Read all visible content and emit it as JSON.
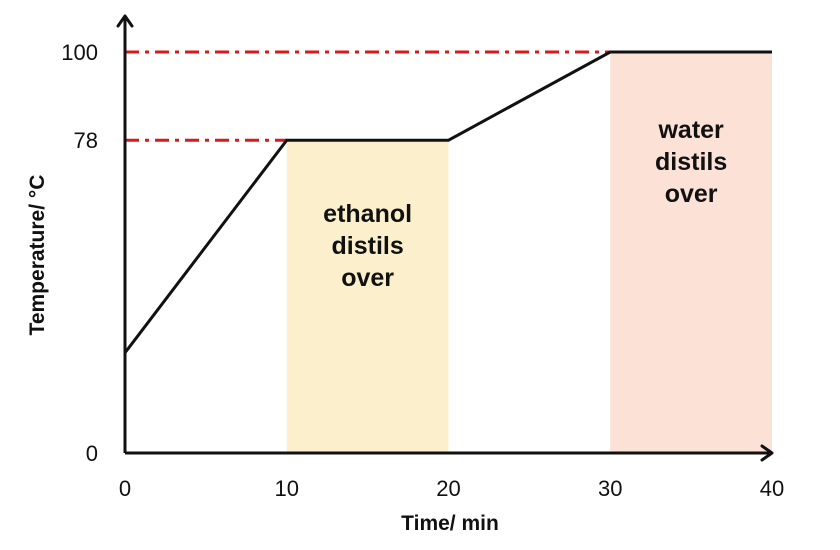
{
  "chart_data": {
    "type": "line",
    "title": "",
    "xlabel": "Time/ min",
    "ylabel": "Temperature/ °C",
    "xlim": [
      0,
      40
    ],
    "ylim": [
      0,
      100
    ],
    "x_ticks": [
      "0",
      "10",
      "20",
      "30",
      "40"
    ],
    "y_ticks": [
      "0",
      "78",
      "100"
    ],
    "grid": false,
    "series": [
      {
        "x": [
          0,
          10,
          20,
          30,
          40
        ],
        "y": [
          25,
          78,
          78,
          100,
          100
        ]
      }
    ],
    "reference_lines": [
      {
        "y": 78,
        "x_from": 0,
        "x_to": 10,
        "style": "dash-dot",
        "color": "#d91a1a"
      },
      {
        "y": 100,
        "x_from": 0,
        "x_to": 30,
        "style": "dash-dot",
        "color": "#d91a1a"
      }
    ],
    "regions": [
      {
        "x_from": 10,
        "x_to": 20,
        "color": "#fcf0cc",
        "label_lines": [
          "ethanol",
          "distils",
          "over"
        ]
      },
      {
        "x_from": 30,
        "x_to": 40,
        "color": "#fbe1d6",
        "label_lines": [
          "water",
          "distils",
          "over"
        ]
      }
    ],
    "colors": {
      "line": "#111111",
      "axis": "#111111"
    }
  }
}
